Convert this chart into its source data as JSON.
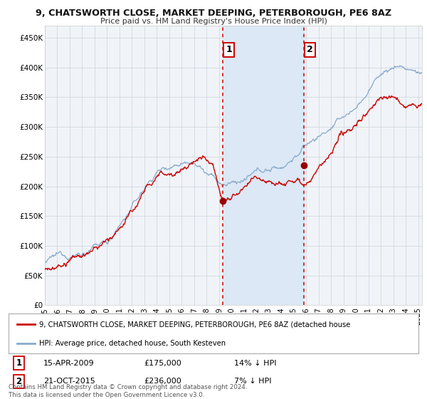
{
  "title1": "9, CHATSWORTH CLOSE, MARKET DEEPING, PETERBOROUGH, PE6 8AZ",
  "title2": "Price paid vs. HM Land Registry's House Price Index (HPI)",
  "ylabel_ticks": [
    "£0",
    "£50K",
    "£100K",
    "£150K",
    "£200K",
    "£250K",
    "£300K",
    "£350K",
    "£400K",
    "£450K"
  ],
  "ylim": [
    0,
    470000
  ],
  "xlim_start": 1995.0,
  "xlim_end": 2025.3,
  "legend_line1": "9, CHATSWORTH CLOSE, MARKET DEEPING, PETERBOROUGH, PE6 8AZ (detached house",
  "legend_line2": "HPI: Average price, detached house, South Kesteven",
  "ann1_label": "1",
  "ann1_date": "15-APR-2009",
  "ann1_price": "£175,000",
  "ann1_pct": "14% ↓ HPI",
  "ann1_x": 2009.29,
  "ann1_y": 175000,
  "ann2_label": "2",
  "ann2_date": "21-OCT-2015",
  "ann2_price": "£236,000",
  "ann2_pct": "7% ↓ HPI",
  "ann2_x": 2015.8,
  "ann2_y": 236000,
  "footnote": "Contains HM Land Registry data © Crown copyright and database right 2024.\nThis data is licensed under the Open Government Licence v3.0.",
  "line_color_red": "#cc0000",
  "line_color_blue": "#88aacc",
  "background_color": "#ffffff",
  "plot_bg_color": "#f0f4f8",
  "grid_color": "#d0d8e0",
  "annotation_box_color": "#cc0000",
  "dashed_line_color": "#cc0000",
  "span_color": "#dce8f5",
  "dot_color": "#990000"
}
